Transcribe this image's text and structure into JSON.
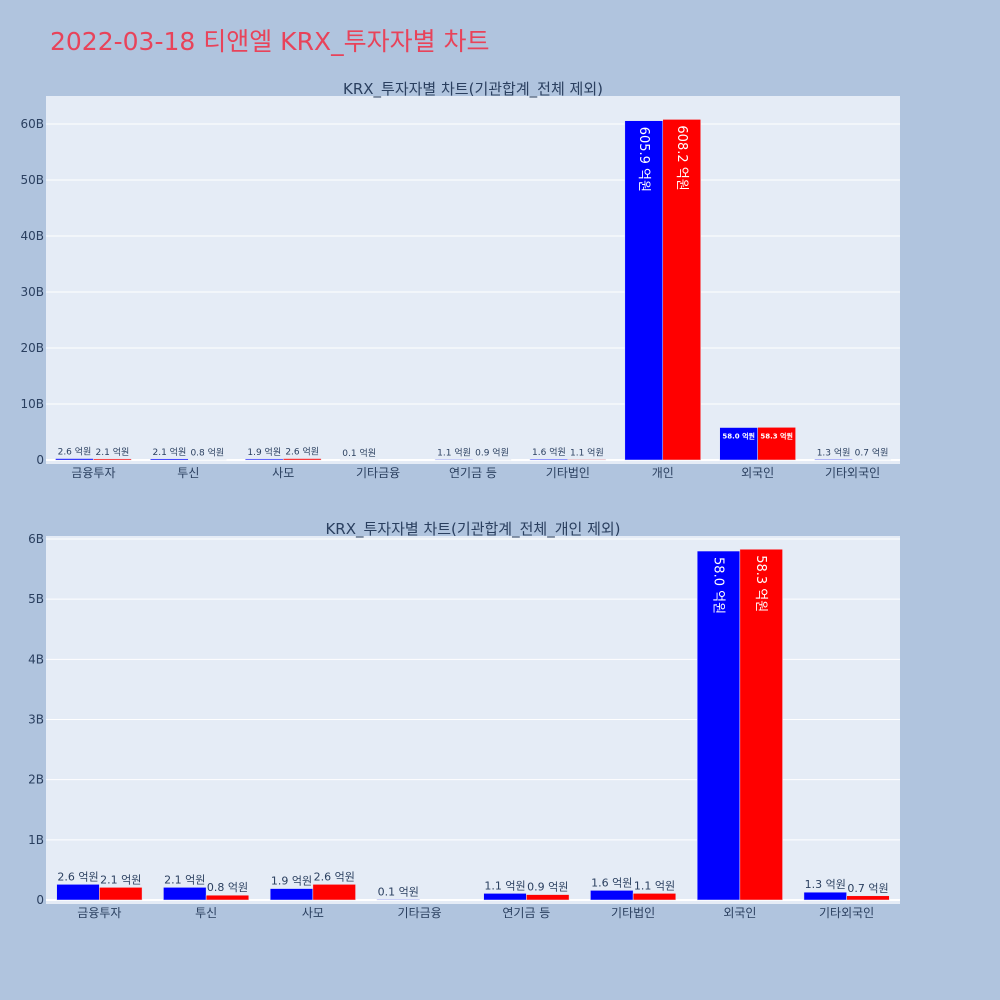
{
  "page": {
    "title": "2022-03-18 티앤엘 KRX_투자자별 차트",
    "colors": {
      "background": "#b0c4de",
      "plot_bg": "#e5ecf6",
      "title": "#e8435a",
      "buy": "#0000ff",
      "sell": "#ff0000"
    }
  },
  "chart_data": [
    {
      "type": "bar",
      "title": "KRX_투자자별 차트(기관합계_전체 제외)",
      "categories": [
        "금융투자",
        "투신",
        "사모",
        "기타금융",
        "연기금 등",
        "기타법인",
        "개인",
        "외국인",
        "기타외국인"
      ],
      "series": [
        {
          "color": "#0000ff",
          "values": [
            260000000,
            210000000,
            190000000,
            10000000,
            110000000,
            160000000,
            60590000000,
            5800000000,
            130000000
          ],
          "labels": [
            "2.6 억원",
            "2.1 억원",
            "1.9 억원",
            "0.1 억원",
            "1.1 억원",
            "1.6 억원",
            "605.9 억원",
            "58.0 억원",
            "1.3 억원"
          ]
        },
        {
          "color": "#ff0000",
          "values": [
            210000000,
            80000000,
            260000000,
            0,
            90000000,
            110000000,
            60820000000,
            5830000000,
            70000000
          ],
          "labels": [
            "2.1 억원",
            "0.8 억원",
            "2.6 억원",
            "",
            "0.9 억원",
            "1.1 억원",
            "608.2 억원",
            "58.3 억원",
            "0.7 억원"
          ]
        }
      ],
      "ylim": [
        0,
        65000000000
      ],
      "yticks": [
        0,
        10000000000,
        20000000000,
        30000000000,
        40000000000,
        50000000000,
        60000000000
      ],
      "yticklabels": [
        "0",
        "10B",
        "20B",
        "30B",
        "40B",
        "50B",
        "60B"
      ],
      "grid": true
    },
    {
      "type": "bar",
      "title": "KRX_투자자별 차트(기관합계_전체_개인 제외)",
      "categories": [
        "금융투자",
        "투신",
        "사모",
        "기타금융",
        "연기금 등",
        "기타법인",
        "외국인",
        "기타외국인"
      ],
      "series": [
        {
          "color": "#0000ff",
          "values": [
            260000000,
            210000000,
            190000000,
            10000000,
            110000000,
            160000000,
            5800000000,
            130000000
          ],
          "labels": [
            "2.6 억원",
            "2.1 억원",
            "1.9 억원",
            "0.1 억원",
            "1.1 억원",
            "1.6 억원",
            "58.0 억원",
            "1.3 억원"
          ]
        },
        {
          "color": "#ff0000",
          "values": [
            210000000,
            80000000,
            260000000,
            0,
            90000000,
            110000000,
            5830000000,
            70000000
          ],
          "labels": [
            "2.1 억원",
            "0.8 억원",
            "2.6 억원",
            "",
            "0.9 억원",
            "1.1 억원",
            "58.3 억원",
            "0.7 억원"
          ]
        }
      ],
      "ylim": [
        0,
        6050000000
      ],
      "yticks": [
        0,
        1000000000,
        2000000000,
        3000000000,
        4000000000,
        5000000000,
        6000000000
      ],
      "yticklabels": [
        "0",
        "1B",
        "2B",
        "3B",
        "4B",
        "5B",
        "6B"
      ],
      "grid": true
    }
  ]
}
